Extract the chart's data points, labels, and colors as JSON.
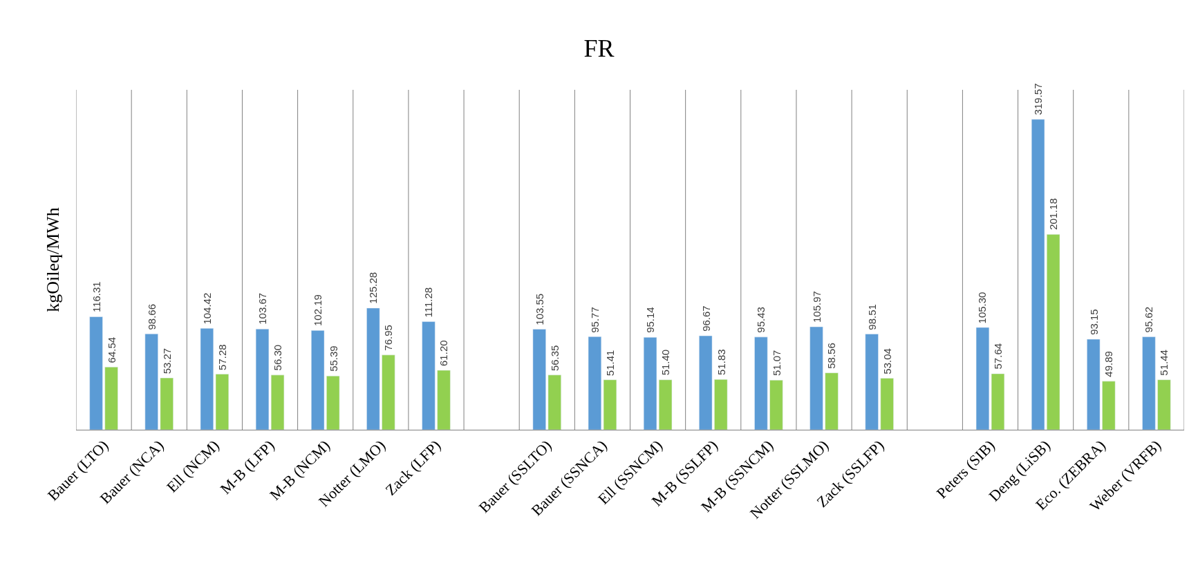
{
  "chart_data": {
    "type": "bar",
    "title": "FR",
    "ylabel": "kgOileq/MWh",
    "categories": [
      "Bauer (LTO)",
      "Bauer (NCA)",
      "Ell (NCM)",
      "M-B (LFP)",
      "M-B (NCM)",
      "Notter (LMO)",
      "Zack (LFP)",
      null,
      "Bauer (SSLTO)",
      "Bauer (SSNCA)",
      "Ell (SSNCM)",
      "M-B (SSLFP)",
      "M-B (SSNCM)",
      "Notter (SSLMO)",
      "Zack (SSLFP)",
      null,
      "Peters (SIB)",
      "Deng (LiSB)",
      "Eco. (ZEBRA)",
      "Weber (VRFB)"
    ],
    "series": [
      {
        "color": "#5b9bd5",
        "values": [
          116.31,
          98.66,
          104.42,
          103.67,
          102.19,
          125.28,
          111.28,
          null,
          103.55,
          95.77,
          95.14,
          96.67,
          95.43,
          105.97,
          98.51,
          null,
          105.3,
          319.57,
          93.15,
          95.62
        ],
        "value_labels": [
          "116.31",
          "98.66",
          "104.42",
          "103.67",
          "102.19",
          "125.28",
          "111.28",
          null,
          "103.55",
          "95.77",
          "95.14",
          "96.67",
          "95.43",
          "105.97",
          "98.51",
          null,
          "105.30",
          "319.57",
          "93.15",
          "95.62"
        ]
      },
      {
        "color": "#92d050",
        "values": [
          64.54,
          53.27,
          57.28,
          56.3,
          55.39,
          76.95,
          61.2,
          null,
          56.35,
          51.41,
          51.4,
          51.83,
          51.07,
          58.56,
          53.04,
          null,
          57.64,
          201.18,
          49.89,
          51.44
        ],
        "value_labels": [
          "64.54",
          "53.27",
          "57.28",
          "56.30",
          "55.39",
          "76.95",
          "61.20",
          null,
          "56.35",
          "51.41",
          "51.40",
          "51.83",
          "51.07",
          "58.56",
          "53.04",
          null,
          "57.64",
          "201.18",
          "49.89",
          "51.44"
        ]
      }
    ],
    "ylim": [
      0,
      350
    ],
    "grid": "x",
    "tick_labels": "x"
  }
}
